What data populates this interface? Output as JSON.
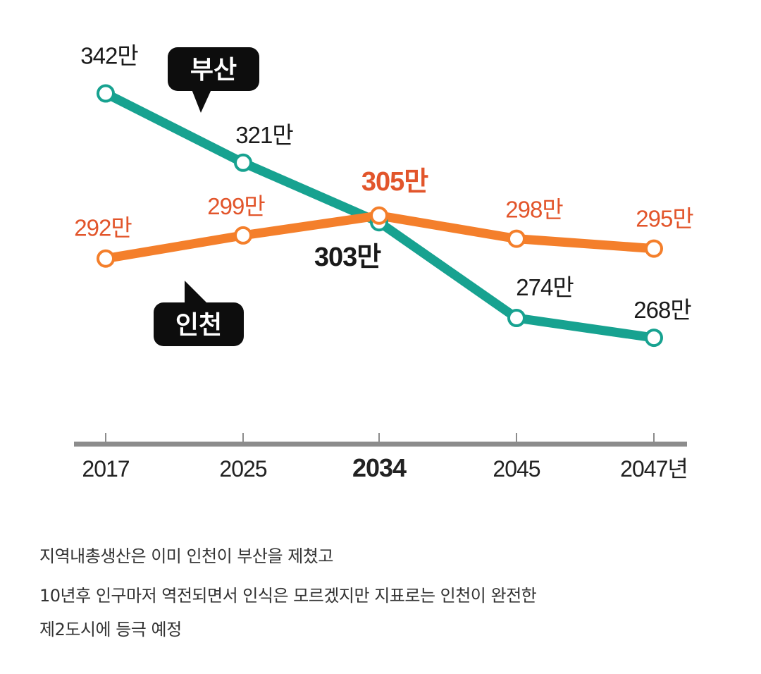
{
  "chart_data": {
    "type": "line",
    "categories": [
      "2017",
      "2025",
      "2034",
      "2045",
      "2047년"
    ],
    "highlight_category": "2034",
    "series": [
      {
        "name": "부산",
        "color": "#17a290",
        "values": [
          342,
          321,
          303,
          274,
          268
        ],
        "labels": [
          "342만",
          "321만",
          "303만",
          "274만",
          "268만"
        ]
      },
      {
        "name": "인천",
        "color": "#f47f2b",
        "values": [
          292,
          299,
          305,
          298,
          295
        ],
        "labels": [
          "292만",
          "299만",
          "305만",
          "298만",
          "295만"
        ]
      }
    ],
    "ylim": [
      255,
      350
    ],
    "grid": false,
    "legend": "callout-labels"
  },
  "colors": {
    "axis": "#8c8c8c",
    "tick_text": "#222222",
    "busan_label": "#1a1a1a",
    "incheon_label": "#e2552b",
    "callout_bg": "#0d0d0d",
    "callout_text": "#ffffff"
  },
  "caption": {
    "line1": "지역내총생산은 이미 인천이 부산을 제쳤고",
    "line2": "10년후 인구마저 역전되면서 인식은 모르겠지만 지표로는 인천이 완전한",
    "line3": "제2도시에 등극 예정"
  }
}
